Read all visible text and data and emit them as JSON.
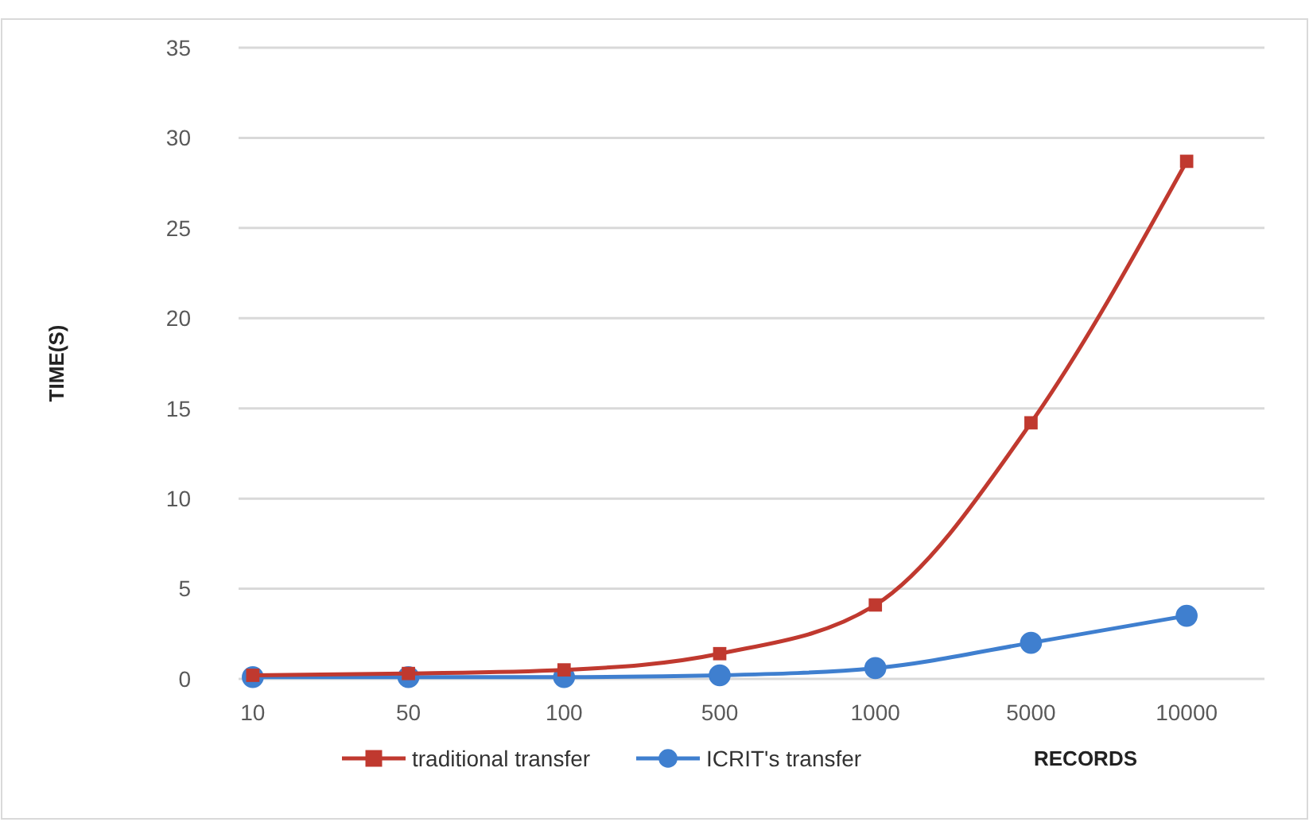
{
  "chart_data": {
    "type": "line",
    "xlabel": "RECORDS",
    "ylabel": "TIME(S)",
    "categories": [
      "10",
      "50",
      "100",
      "500",
      "1000",
      "5000",
      "10000"
    ],
    "series": [
      {
        "name": "traditional transfer",
        "color": "#c0392f",
        "marker": "square",
        "values": [
          0.2,
          0.3,
          0.5,
          1.4,
          4.1,
          14.2,
          28.7
        ]
      },
      {
        "name": "ICRIT's transfer",
        "color": "#3f7fcf",
        "marker": "circle",
        "values": [
          0.1,
          0.1,
          0.1,
          0.2,
          0.6,
          2.0,
          3.5
        ]
      }
    ],
    "ylim": [
      0,
      35
    ],
    "yticks": [
      0,
      5,
      10,
      15,
      20,
      25,
      30,
      35
    ],
    "grid": "y",
    "legend": "bottom"
  }
}
